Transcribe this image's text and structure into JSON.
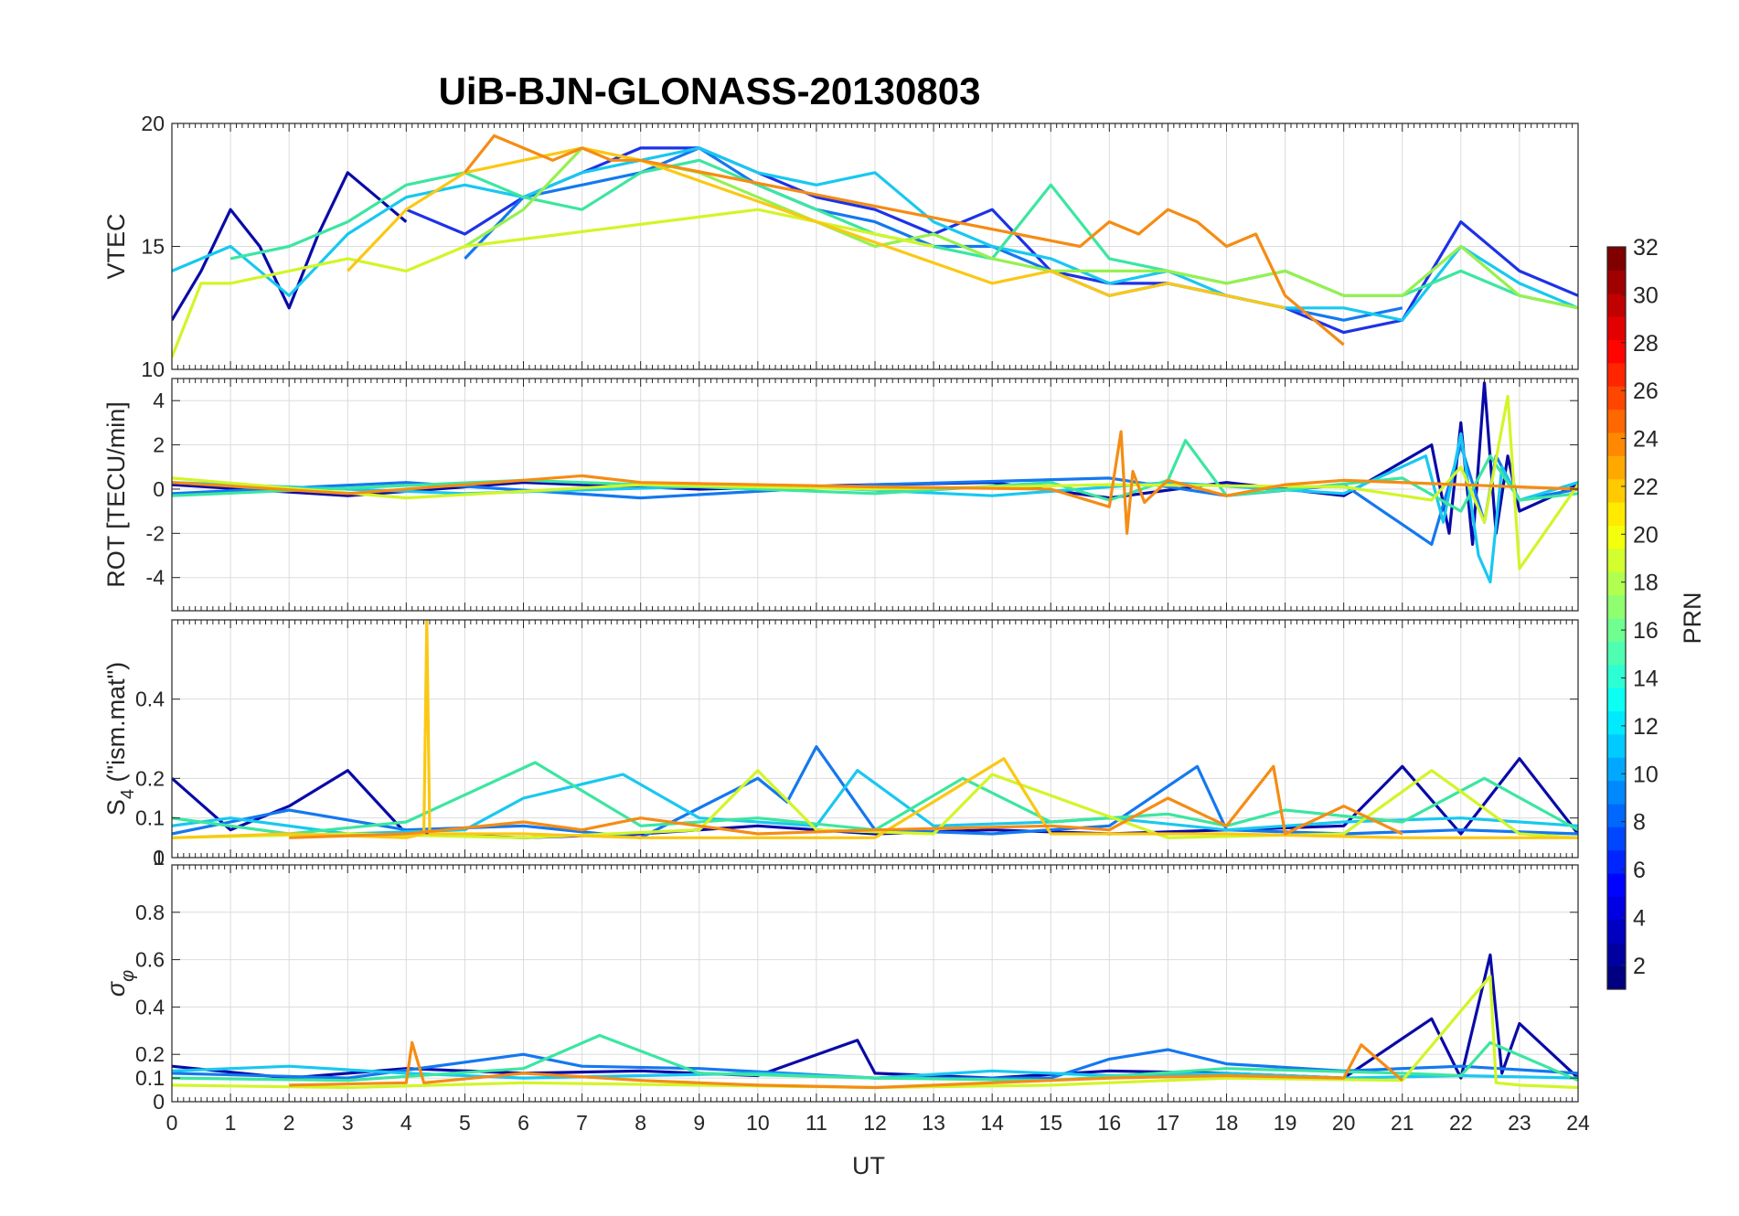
{
  "figure": {
    "title": "UiB-BJN-GLONASS-20130803",
    "xlabel": "UT",
    "xticks": [
      "0",
      "1",
      "2",
      "3",
      "4",
      "5",
      "6",
      "7",
      "8",
      "9",
      "10",
      "11",
      "12",
      "13",
      "14",
      "15",
      "16",
      "17",
      "18",
      "19",
      "20",
      "21",
      "22",
      "23",
      "24"
    ]
  },
  "colorbar": {
    "label": "PRN",
    "range": [
      1,
      32
    ],
    "ticks": [
      "2",
      "4",
      "6",
      "8",
      "10",
      "12",
      "14",
      "16",
      "18",
      "20",
      "22",
      "24",
      "26",
      "28",
      "30",
      "32"
    ],
    "colormap": "jet"
  },
  "chart_data": [
    {
      "type": "line",
      "panel": "VTEC",
      "ylabel": "VTEC",
      "xlim": [
        0,
        24
      ],
      "ylim": [
        10,
        20
      ],
      "yticks": [
        "10",
        "15",
        "20"
      ],
      "grid": true,
      "series": [
        {
          "prn": 2,
          "color": "#0a0aa8",
          "x": [
            0,
            0.5,
            1,
            1.5,
            2,
            2.5,
            3,
            3.5,
            4
          ],
          "y": [
            12,
            14,
            16.5,
            15,
            12.5,
            15.5,
            18,
            17,
            16
          ]
        },
        {
          "prn": 5,
          "color": "#1e32e6",
          "x": [
            4,
            5,
            6,
            7,
            8,
            9,
            10,
            11,
            12,
            13,
            14,
            15,
            16,
            17,
            18,
            19,
            20,
            21,
            22,
            23,
            24
          ],
          "y": [
            16.5,
            15.5,
            17,
            18,
            19,
            19,
            18,
            17,
            16.5,
            15.5,
            16.5,
            14,
            13.5,
            13.5,
            13,
            12.5,
            11.5,
            12,
            16,
            14,
            13
          ]
        },
        {
          "prn": 8,
          "color": "#1478f0",
          "x": [
            5,
            6,
            7,
            8,
            9,
            10,
            11,
            12,
            13,
            14,
            15,
            16,
            17,
            18,
            19,
            20,
            21
          ],
          "y": [
            14.5,
            17,
            17.5,
            18,
            19,
            17.5,
            16.5,
            16,
            15,
            15,
            14,
            13,
            13.5,
            13,
            12.5,
            12,
            12.5
          ]
        },
        {
          "prn": 11,
          "color": "#18c8f0",
          "x": [
            0,
            1,
            2,
            3,
            4,
            5,
            6,
            7,
            8,
            9,
            10,
            11,
            12,
            13,
            14,
            15,
            16,
            17,
            18,
            19,
            20,
            21,
            22,
            23,
            24
          ],
          "y": [
            14,
            15,
            13,
            15.5,
            17,
            17.5,
            17,
            18,
            18.5,
            19,
            18,
            17.5,
            18,
            16,
            15,
            14.5,
            13.5,
            14,
            13,
            12.5,
            12.5,
            12,
            15,
            13.5,
            12.5
          ]
        },
        {
          "prn": 14,
          "color": "#3ce6a0",
          "x": [
            1,
            2,
            3,
            4,
            5,
            6,
            7,
            8,
            9,
            10,
            11,
            12,
            13,
            14,
            15,
            16,
            17,
            18,
            19,
            20,
            21,
            22,
            23,
            24
          ],
          "y": [
            14.5,
            15,
            16,
            17.5,
            18,
            17,
            16.5,
            18,
            18.5,
            17.5,
            16.5,
            15.5,
            15,
            14.5,
            17.5,
            14.5,
            14,
            13.5,
            14,
            13,
            13,
            14,
            13,
            12.5
          ]
        },
        {
          "prn": 17,
          "color": "#96f050",
          "x": [
            5,
            6,
            7,
            8,
            9,
            10,
            11,
            12,
            13,
            14,
            15,
            16,
            17,
            18,
            19,
            20,
            21,
            22,
            23,
            24
          ],
          "y": [
            15,
            16.5,
            19,
            18.5,
            18,
            17,
            16,
            15,
            15.5,
            14.5,
            14,
            14,
            14,
            13.5,
            14,
            13,
            13,
            15,
            13,
            12.5
          ]
        },
        {
          "prn": 19,
          "color": "#d2f528",
          "x": [
            0,
            0.5,
            1,
            2,
            3,
            4,
            5,
            10,
            11,
            12,
            13
          ],
          "y": [
            10.5,
            13.5,
            13.5,
            14,
            14.5,
            14,
            15,
            16.5,
            16,
            15.5,
            15
          ]
        },
        {
          "prn": 22,
          "color": "#fac814",
          "x": [
            3,
            4,
            5,
            6,
            7,
            8,
            14,
            15,
            16,
            17,
            18,
            19
          ],
          "y": [
            14,
            16.5,
            18,
            18.5,
            19,
            18.5,
            13.5,
            14,
            13,
            13.5,
            13,
            12.5
          ]
        },
        {
          "prn": 24,
          "color": "#f58c14",
          "x": [
            5,
            5.5,
            6,
            6.5,
            7,
            7.5,
            8,
            15.5,
            16,
            16.5,
            17,
            17.5,
            18,
            18.5,
            19,
            19.5,
            20
          ],
          "y": [
            18,
            19.5,
            19,
            18.5,
            19,
            18.5,
            18.5,
            15,
            16,
            15.5,
            16.5,
            16,
            15,
            15.5,
            13,
            12,
            11
          ]
        }
      ]
    },
    {
      "type": "line",
      "panel": "ROT",
      "ylabel": "ROT [TECU/min]",
      "xlim": [
        0,
        24
      ],
      "ylim": [
        -5.5,
        5
      ],
      "yticks": [
        "-4",
        "-2",
        "0",
        "2",
        "4"
      ],
      "grid": true,
      "series": [
        {
          "prn": 2,
          "color": "#0a0aa8",
          "x": [
            0,
            3,
            6,
            9,
            12,
            14,
            16,
            18,
            20,
            21.5,
            21.8,
            22,
            22.2,
            22.4,
            22.6,
            22.8,
            23,
            24
          ],
          "y": [
            0.2,
            -0.3,
            0.3,
            0,
            0.2,
            0.3,
            -0.4,
            0.3,
            -0.3,
            2,
            -2,
            3,
            -2.5,
            4.8,
            -2,
            1.5,
            -1,
            0.2
          ]
        },
        {
          "prn": 8,
          "color": "#1478f0",
          "x": [
            0,
            4,
            8,
            12,
            16,
            18,
            20,
            21.5,
            22,
            22.4,
            22.6,
            23,
            24
          ],
          "y": [
            -0.2,
            0.3,
            -0.4,
            0.2,
            0.5,
            -0.3,
            0.2,
            -2.5,
            2,
            -1.5,
            1.5,
            -0.5,
            0
          ]
        },
        {
          "prn": 11,
          "color": "#18c8f0",
          "x": [
            0,
            5,
            10,
            14,
            17,
            20,
            21.4,
            21.7,
            22,
            22.3,
            22.5,
            22.7,
            23,
            24
          ],
          "y": [
            0.3,
            -0.2,
            0.2,
            -0.3,
            0.3,
            -0.2,
            1.5,
            -1.5,
            2.5,
            -3,
            -4.2,
            1,
            -0.5,
            0.3
          ]
        },
        {
          "prn": 14,
          "color": "#3ce6a0",
          "x": [
            0,
            6,
            12,
            15,
            16,
            17,
            17.3,
            18,
            21,
            22,
            22.5,
            23,
            24
          ],
          "y": [
            -0.3,
            0.4,
            -0.2,
            0.3,
            -0.5,
            0.4,
            2.2,
            -0.3,
            0.5,
            -1,
            1.5,
            -0.5,
            -0.2
          ]
        },
        {
          "prn": 19,
          "color": "#d2f528",
          "x": [
            0,
            4,
            8,
            12,
            16,
            20,
            21.5,
            22,
            22.4,
            22.8,
            23,
            24
          ],
          "y": [
            0.5,
            -0.4,
            0.2,
            0,
            0.2,
            0.1,
            -0.5,
            1,
            -1.5,
            4.2,
            -3.6,
            0.2
          ]
        },
        {
          "prn": 24,
          "color": "#f58c14",
          "x": [
            0,
            3,
            6,
            7,
            8,
            12,
            15,
            16,
            16.2,
            16.3,
            16.4,
            16.6,
            17,
            18,
            19,
            20,
            24
          ],
          "y": [
            0.3,
            -0.2,
            0.4,
            0.6,
            0.3,
            0.1,
            0,
            -0.8,
            2.6,
            -2,
            0.8,
            -0.6,
            0.4,
            -0.3,
            0.2,
            0.4,
            0
          ]
        }
      ]
    },
    {
      "type": "line",
      "panel": "S4",
      "ylabel": "S4 (\"ism.mat\")",
      "xlim": [
        0,
        24
      ],
      "ylim": [
        0,
        0.6
      ],
      "yticks": [
        "0",
        "0.1",
        "0.2",
        "0.4"
      ],
      "extra_tick": "1",
      "grid": true,
      "series": [
        {
          "prn": 2,
          "color": "#0a0aa8",
          "x": [
            0,
            1,
            2,
            3,
            4,
            6,
            8,
            10,
            12,
            14,
            16,
            18,
            20,
            21,
            22,
            23,
            24
          ],
          "y": [
            0.2,
            0.07,
            0.13,
            0.22,
            0.06,
            0.05,
            0.06,
            0.08,
            0.06,
            0.07,
            0.06,
            0.07,
            0.08,
            0.23,
            0.06,
            0.25,
            0.06
          ]
        },
        {
          "prn": 8,
          "color": "#1478f0",
          "x": [
            0,
            2,
            4,
            6,
            8,
            10,
            10.5,
            11,
            12,
            14,
            16,
            17.5,
            18,
            20,
            22,
            24
          ],
          "y": [
            0.06,
            0.12,
            0.07,
            0.08,
            0.05,
            0.2,
            0.14,
            0.28,
            0.07,
            0.06,
            0.08,
            0.23,
            0.07,
            0.06,
            0.07,
            0.06
          ]
        },
        {
          "prn": 11,
          "color": "#18c8f0",
          "x": [
            0,
            1,
            3,
            5,
            6,
            7.7,
            9,
            11,
            11.7,
            13,
            15,
            16,
            18,
            20,
            22,
            24
          ],
          "y": [
            0.08,
            0.1,
            0.06,
            0.07,
            0.15,
            0.21,
            0.1,
            0.08,
            0.22,
            0.08,
            0.09,
            0.1,
            0.07,
            0.09,
            0.1,
            0.08
          ]
        },
        {
          "prn": 14,
          "color": "#3ce6a0",
          "x": [
            0,
            2,
            4,
            6.2,
            8,
            10,
            12,
            13.5,
            15,
            17,
            18,
            19,
            21,
            22.4,
            24
          ],
          "y": [
            0.1,
            0.06,
            0.09,
            0.24,
            0.08,
            0.1,
            0.07,
            0.2,
            0.09,
            0.11,
            0.08,
            0.12,
            0.09,
            0.2,
            0.07
          ]
        },
        {
          "prn": 19,
          "color": "#d2f528",
          "x": [
            0,
            3,
            6,
            9,
            10,
            11,
            13,
            14,
            17,
            20,
            21.5,
            23,
            24
          ],
          "y": [
            0.05,
            0.06,
            0.05,
            0.07,
            0.22,
            0.07,
            0.06,
            0.21,
            0.05,
            0.06,
            0.22,
            0.06,
            0.05
          ]
        },
        {
          "prn": 22,
          "color": "#fac814",
          "x": [
            0,
            2,
            4,
            4.3,
            4.35,
            4.4,
            6,
            8,
            12,
            14.2,
            15,
            18,
            21,
            24
          ],
          "y": [
            0.05,
            0.06,
            0.05,
            0.06,
            0.6,
            0.06,
            0.06,
            0.05,
            0.05,
            0.25,
            0.06,
            0.06,
            0.05,
            0.05
          ]
        },
        {
          "prn": 24,
          "color": "#f58c14",
          "x": [
            2,
            4,
            6,
            7,
            8,
            10,
            12,
            15,
            16,
            17,
            18,
            18.8,
            19,
            20,
            21
          ],
          "y": [
            0.05,
            0.06,
            0.09,
            0.07,
            0.1,
            0.06,
            0.07,
            0.08,
            0.07,
            0.15,
            0.08,
            0.23,
            0.06,
            0.13,
            0.06
          ]
        }
      ]
    },
    {
      "type": "line",
      "panel": "sigma_phi",
      "ylabel": "σφ",
      "xlim": [
        0,
        24
      ],
      "ylim": [
        0,
        1
      ],
      "yticks": [
        "0",
        "0.1",
        "0.2",
        "0.4",
        "0.6",
        "0.8"
      ],
      "grid": true,
      "series": [
        {
          "prn": 2,
          "color": "#0a0aa8",
          "x": [
            0,
            2,
            4,
            6,
            8,
            10,
            11.7,
            12,
            14,
            16,
            18,
            20,
            21.5,
            22,
            22.5,
            22.7,
            23,
            24
          ],
          "y": [
            0.15,
            0.1,
            0.14,
            0.12,
            0.13,
            0.11,
            0.26,
            0.12,
            0.1,
            0.13,
            0.12,
            0.1,
            0.35,
            0.1,
            0.62,
            0.12,
            0.33,
            0.1
          ]
        },
        {
          "prn": 8,
          "color": "#1478f0",
          "x": [
            0,
            3,
            6,
            7,
            9,
            12,
            15,
            16,
            17,
            18,
            20,
            22,
            24
          ],
          "y": [
            0.12,
            0.1,
            0.2,
            0.15,
            0.14,
            0.1,
            0.1,
            0.18,
            0.22,
            0.16,
            0.13,
            0.15,
            0.12
          ]
        },
        {
          "prn": 11,
          "color": "#18c8f0",
          "x": [
            0,
            2,
            4,
            6,
            8,
            10,
            12,
            14,
            16,
            18,
            20,
            22,
            24
          ],
          "y": [
            0.13,
            0.15,
            0.12,
            0.1,
            0.11,
            0.12,
            0.1,
            0.13,
            0.11,
            0.12,
            0.1,
            0.11,
            0.1
          ]
        },
        {
          "prn": 14,
          "color": "#3ce6a0",
          "x": [
            0,
            3,
            6,
            7.3,
            9,
            12,
            15,
            18,
            21,
            22,
            22.5,
            24
          ],
          "y": [
            0.1,
            0.09,
            0.14,
            0.28,
            0.12,
            0.1,
            0.09,
            0.14,
            0.12,
            0.11,
            0.25,
            0.09
          ]
        },
        {
          "prn": 19,
          "color": "#d2f528",
          "x": [
            0,
            3,
            6,
            9,
            12,
            15,
            18,
            21,
            22.5,
            22.6,
            23,
            24
          ],
          "y": [
            0.07,
            0.06,
            0.08,
            0.07,
            0.06,
            0.07,
            0.1,
            0.09,
            0.53,
            0.08,
            0.07,
            0.06
          ]
        },
        {
          "prn": 24,
          "color": "#f58c14",
          "x": [
            2,
            4,
            4.1,
            4.3,
            6,
            8,
            10,
            12,
            16,
            18,
            20,
            20.3,
            21
          ],
          "y": [
            0.07,
            0.08,
            0.25,
            0.08,
            0.12,
            0.09,
            0.07,
            0.06,
            0.1,
            0.11,
            0.1,
            0.24,
            0.09
          ]
        }
      ]
    }
  ]
}
